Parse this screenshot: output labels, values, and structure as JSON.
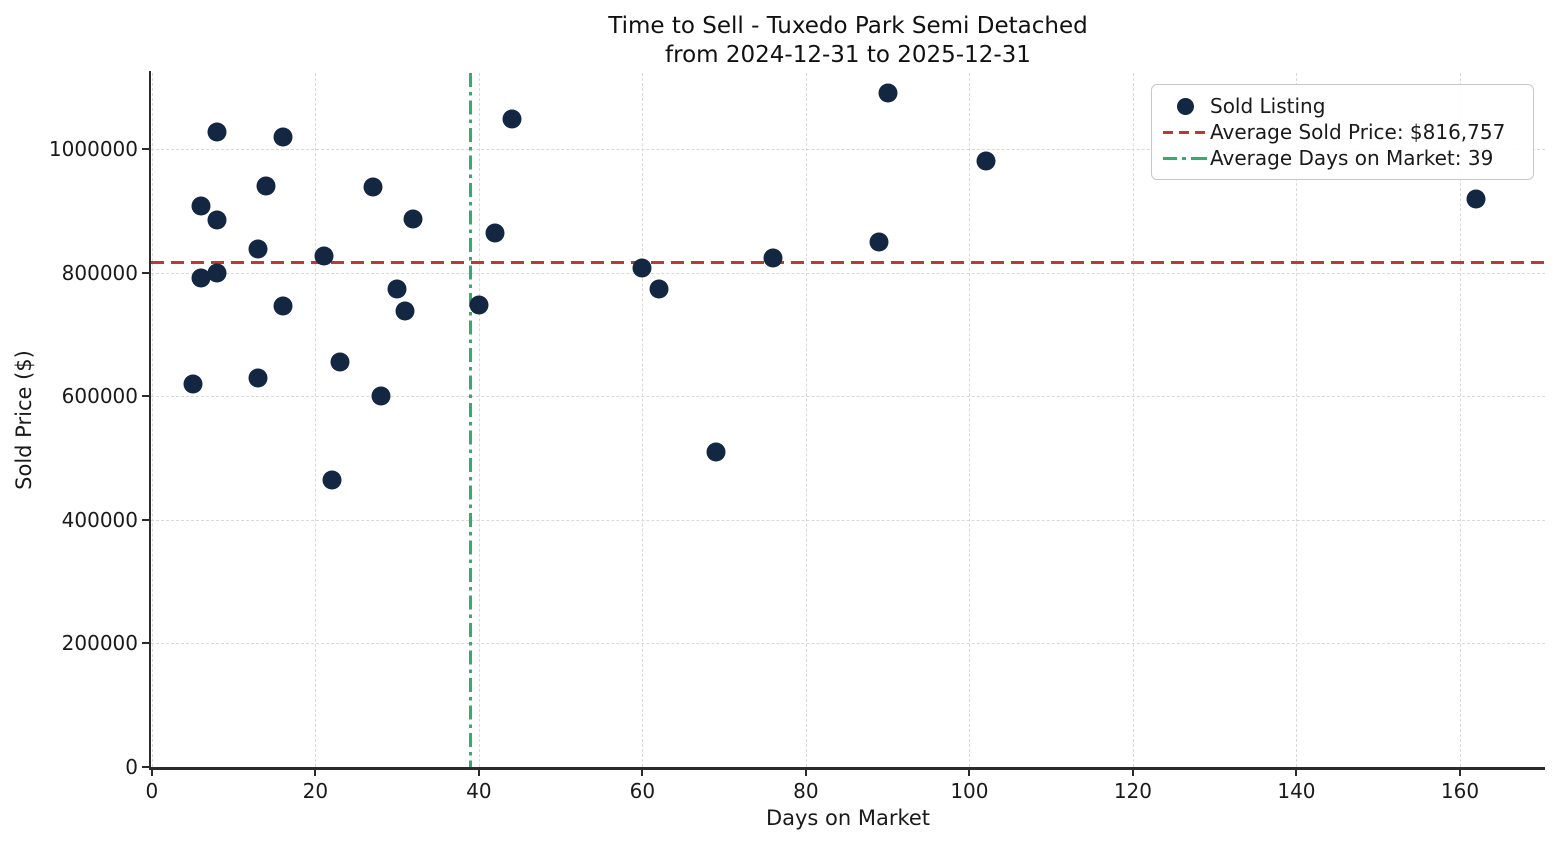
{
  "header": {
    "title_line1": "Time to Sell - Tuxedo Park Semi Detached",
    "title_line2": "from 2024-12-31 to 2025-12-31"
  },
  "axes": {
    "xlabel": "Days on Market",
    "ylabel": "Sold Price ($)"
  },
  "legend": {
    "items": [
      {
        "label": "Sold Listing",
        "marker": "dot"
      },
      {
        "label": "Average Sold Price: $816,757",
        "marker": "dashed-line"
      },
      {
        "label": "Average Days on Market: 39",
        "marker": "dashdot-line"
      }
    ]
  },
  "colors": {
    "point": "#132642",
    "avg_price_line": "#bc3a32",
    "avg_dom_line": "#35ac6c",
    "grid": "#d9d9d9",
    "spine": "#2b2b2b",
    "text": "#1a1a1a"
  },
  "chart_data": {
    "type": "scatter",
    "title": "Time to Sell - Tuxedo Park Semi Detached from 2024-12-31 to 2025-12-31",
    "xlabel": "Days on Market",
    "ylabel": "Sold Price ($)",
    "xlim": [
      -0.1,
      170.4
    ],
    "ylim": [
      0,
      1123000
    ],
    "xticks": [
      0,
      20,
      40,
      60,
      80,
      100,
      120,
      140,
      160
    ],
    "yticks": [
      0,
      200000,
      400000,
      600000,
      800000,
      1000000
    ],
    "grid": true,
    "legend_position": "upper right",
    "avg_sold_price": 816757,
    "avg_sold_price_label": "$816,757",
    "avg_days_on_market": 39,
    "series": [
      {
        "name": "Sold Listing",
        "points": [
          {
            "x": 5,
            "y": 620000
          },
          {
            "x": 6,
            "y": 908000
          },
          {
            "x": 6,
            "y": 792000
          },
          {
            "x": 8,
            "y": 1028000
          },
          {
            "x": 8,
            "y": 885000
          },
          {
            "x": 8,
            "y": 800000
          },
          {
            "x": 13,
            "y": 838000
          },
          {
            "x": 13,
            "y": 629000
          },
          {
            "x": 14,
            "y": 940000
          },
          {
            "x": 16,
            "y": 1020000
          },
          {
            "x": 16,
            "y": 746000
          },
          {
            "x": 21,
            "y": 827000
          },
          {
            "x": 22,
            "y": 464000
          },
          {
            "x": 23,
            "y": 655000
          },
          {
            "x": 27,
            "y": 938000
          },
          {
            "x": 28,
            "y": 601000
          },
          {
            "x": 30,
            "y": 773000
          },
          {
            "x": 31,
            "y": 738000
          },
          {
            "x": 32,
            "y": 886000
          },
          {
            "x": 40,
            "y": 747000
          },
          {
            "x": 42,
            "y": 864000
          },
          {
            "x": 44,
            "y": 1048000
          },
          {
            "x": 60,
            "y": 808000
          },
          {
            "x": 62,
            "y": 773000
          },
          {
            "x": 69,
            "y": 509000
          },
          {
            "x": 76,
            "y": 823000
          },
          {
            "x": 89,
            "y": 849000
          },
          {
            "x": 90,
            "y": 1090000
          },
          {
            "x": 102,
            "y": 981000
          },
          {
            "x": 162,
            "y": 919000
          }
        ]
      }
    ]
  }
}
